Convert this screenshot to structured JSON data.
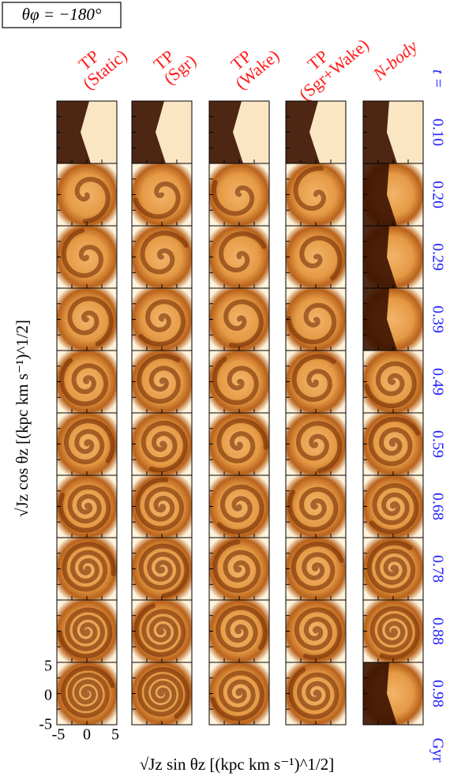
{
  "title": "θφ = −180°",
  "columns": [
    {
      "line1": "TP",
      "line2": "(Static)"
    },
    {
      "line1": "TP",
      "line2": "(Sgr)"
    },
    {
      "line1": "TP",
      "line2": "(Wake)"
    },
    {
      "line1": "TP",
      "line2": "(Sgr+Wake)"
    },
    {
      "line1": "N-body"
    }
  ],
  "time_label": "t =",
  "times": [
    "0.10",
    "0.20",
    "0.29",
    "0.39",
    "0.49",
    "0.59",
    "0.68",
    "0.78",
    "0.88",
    "0.98"
  ],
  "time_unit": "Gyr",
  "y_axis_label": "√Jz cos θz [(kpc km s⁻¹)^1/2]",
  "x_axis_label": "√Jz sin θz [(kpc km s⁻¹)^1/2]",
  "y_ticks": [
    "5",
    "0",
    "-5"
  ],
  "x_ticks": [
    "-5",
    "0",
    "5"
  ]
}
